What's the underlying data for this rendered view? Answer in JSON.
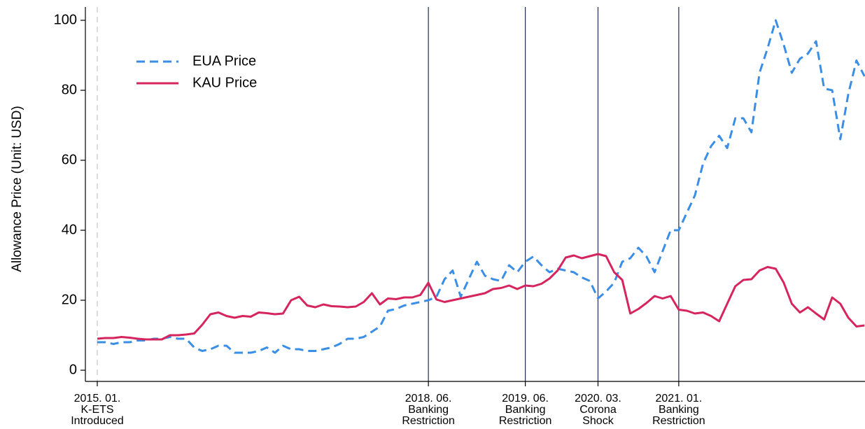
{
  "chart_data": {
    "type": "line",
    "y_label": "Allowance Price (Unit: USD)",
    "categories": [
      "2015. 01.",
      null,
      null,
      null,
      null,
      null,
      null,
      null,
      null,
      null,
      null,
      null,
      null,
      null,
      null,
      null,
      null,
      null,
      null,
      null,
      null,
      null,
      null,
      null,
      null,
      null,
      null,
      null,
      null,
      null,
      null,
      null,
      null,
      null,
      null,
      null,
      null,
      null,
      null,
      null,
      null,
      "2018. 06.",
      null,
      null,
      null,
      null,
      null,
      null,
      null,
      null,
      null,
      null,
      null,
      "2019. 06.",
      null,
      null,
      null,
      null,
      null,
      null,
      null,
      null,
      "2020. 03.",
      null,
      null,
      null,
      null,
      null,
      null,
      null,
      null,
      null,
      "2021. 01.",
      null,
      null,
      null,
      null,
      null,
      null,
      null,
      null,
      null,
      null,
      null,
      null,
      null,
      null,
      null,
      null,
      null,
      null,
      null,
      null,
      null,
      null,
      null
    ],
    "series": [
      {
        "name": "EUA Price",
        "color": "#3a8ee6",
        "dash": true,
        "values": [
          8,
          8,
          7.5,
          8,
          8,
          8.5,
          8.5,
          9,
          9,
          9.5,
          9,
          9,
          6.5,
          5.5,
          6,
          7,
          7,
          5,
          5,
          5,
          5.5,
          6.5,
          5,
          7,
          6,
          6,
          5.5,
          5.5,
          6,
          6.5,
          7.5,
          9,
          9,
          9.5,
          11,
          12.5,
          17,
          17.5,
          18.5,
          19,
          19.5,
          20,
          21,
          26,
          28.5,
          21,
          26,
          31,
          27,
          26,
          25.5,
          30,
          28,
          31,
          32.5,
          30,
          28,
          29,
          28.5,
          28,
          26.5,
          25.5,
          20.5,
          22.5,
          25,
          31,
          32,
          35,
          32.5,
          28,
          34,
          40,
          40,
          45,
          50,
          59,
          64,
          67,
          63.5,
          72,
          72,
          68,
          85,
          92,
          100,
          93,
          85,
          89,
          90.5,
          94,
          80.5,
          80,
          66,
          79,
          88.5,
          84
        ]
      },
      {
        "name": "KAU Price",
        "color": "#d6245e",
        "dash": false,
        "values": [
          9,
          9.2,
          9.2,
          9.5,
          9.3,
          9,
          8.8,
          8.8,
          8.8,
          10,
          10,
          10.2,
          10.5,
          13,
          16,
          16.5,
          15.5,
          15,
          15.5,
          15.3,
          16.5,
          16.3,
          16,
          16.2,
          20,
          21,
          18.5,
          18,
          18.8,
          18.3,
          18.2,
          18,
          18.2,
          19.5,
          22,
          18.8,
          20.5,
          20.3,
          20.8,
          20.8,
          21.5,
          25,
          20.2,
          19.5,
          20,
          20.5,
          21,
          21.5,
          22,
          23.2,
          23.5,
          24.2,
          23.2,
          24.2,
          24,
          24.7,
          26.2,
          28.5,
          32.2,
          32.8,
          32,
          32.6,
          33.2,
          32.6,
          28,
          25.8,
          16.2,
          17.5,
          19.2,
          21.2,
          20.5,
          21.2,
          17.3,
          17,
          16.2,
          16.5,
          15.5,
          14,
          19,
          24,
          25.8,
          26,
          28.5,
          29.5,
          29,
          25,
          19,
          16.5,
          18,
          16.2,
          14.5,
          20.8,
          19,
          15,
          12.5,
          12.8
        ]
      }
    ],
    "annotations": [
      {
        "category": "2015. 01.",
        "text": [
          "K-ETS",
          "Introduced"
        ],
        "line_color": "#dcdcdc",
        "line_dash": true
      },
      {
        "category": "2018. 06.",
        "text": [
          "Banking",
          "Restriction"
        ],
        "line_color": "#1f2d4e",
        "line_dash": false
      },
      {
        "category": "2019. 06.",
        "text": [
          "Banking",
          "Restriction"
        ],
        "line_color": "#1f2d4e",
        "line_dash": false
      },
      {
        "category": "2020. 03.",
        "text": [
          "Corona",
          "Shock"
        ],
        "line_color": "#1f2d4e",
        "line_dash": false
      },
      {
        "category": "2021. 01.",
        "text": [
          "Banking",
          "Restriction"
        ],
        "line_color": "#1f2d4e",
        "line_dash": false
      }
    ],
    "ylim": [
      -3.2,
      103.8
    ],
    "yticks": [
      0,
      20,
      40,
      60,
      80,
      100
    ],
    "grid": false,
    "legend": "top-left"
  }
}
